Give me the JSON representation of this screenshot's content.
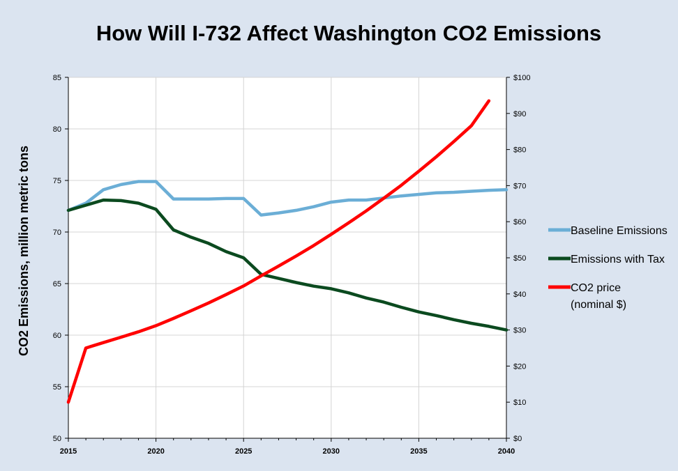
{
  "chart_data": {
    "type": "line",
    "title": "How Will I-732 Affect Washington CO2 Emissions",
    "ylabel": "CO2 Emissions, million metric tons",
    "xlabel": "",
    "xlim": [
      2015,
      2040
    ],
    "ylim": [
      50,
      85
    ],
    "y2lim": [
      0,
      100
    ],
    "x_ticks": [
      "2015",
      "2020",
      "2025",
      "2030",
      "2035",
      "2040"
    ],
    "y_ticks": [
      "50",
      "55",
      "60",
      "65",
      "70",
      "75",
      "80",
      "85"
    ],
    "y2_ticks": [
      "$0",
      "$10",
      "$20",
      "$30",
      "$40",
      "$50",
      "$60",
      "$70",
      "$80",
      "$90",
      "$100"
    ],
    "grid": "horizontal",
    "legend_position": "right",
    "series": [
      {
        "name": "Baseline Emissions",
        "axis": "left",
        "color": "#6baed6",
        "x": [
          2015,
          2016,
          2017,
          2018,
          2019,
          2020,
          2021,
          2022,
          2023,
          2024,
          2025,
          2026,
          2027,
          2028,
          2029,
          2030,
          2031,
          2032,
          2033,
          2034,
          2035,
          2036,
          2037,
          2038,
          2039,
          2040
        ],
        "values": [
          72.1,
          72.8,
          74.1,
          74.6,
          74.9,
          74.9,
          73.2,
          73.2,
          73.2,
          73.25,
          73.25,
          71.65,
          71.85,
          72.1,
          72.45,
          72.9,
          73.1,
          73.1,
          73.3,
          73.5,
          73.65,
          73.8,
          73.85,
          73.95,
          74.05,
          74.1
        ]
      },
      {
        "name": "Emissions with Tax",
        "axis": "left",
        "color": "#0b4a1f",
        "x": [
          2015,
          2016,
          2017,
          2018,
          2019,
          2020,
          2021,
          2022,
          2023,
          2024,
          2025,
          2026,
          2027,
          2028,
          2029,
          2030,
          2031,
          2032,
          2033,
          2034,
          2035,
          2036,
          2037,
          2038,
          2039,
          2040
        ],
        "values": [
          72.1,
          72.6,
          73.1,
          73.05,
          72.8,
          72.2,
          70.2,
          69.5,
          68.9,
          68.1,
          67.5,
          65.9,
          65.5,
          65.1,
          64.75,
          64.5,
          64.1,
          63.6,
          63.2,
          62.7,
          62.25,
          61.9,
          61.5,
          61.15,
          60.85,
          60.5
        ]
      },
      {
        "name": "CO2 price (nominal $)",
        "axis": "right",
        "color": "#ff0000",
        "x": [
          2015,
          2016,
          2017,
          2018,
          2019,
          2020,
          2021,
          2022,
          2023,
          2024,
          2025,
          2026,
          2027,
          2028,
          2029,
          2030,
          2031,
          2032,
          2033,
          2034,
          2035,
          2036,
          2037,
          2038,
          2039
        ],
        "values": [
          10,
          25,
          26.5,
          28,
          29.5,
          31.2,
          33.2,
          35.3,
          37.5,
          39.8,
          42.2,
          45,
          47.7,
          50.5,
          53.4,
          56.5,
          59.7,
          63,
          66.5,
          70.1,
          74,
          78,
          82.2,
          86.6,
          93.5
        ]
      }
    ]
  }
}
